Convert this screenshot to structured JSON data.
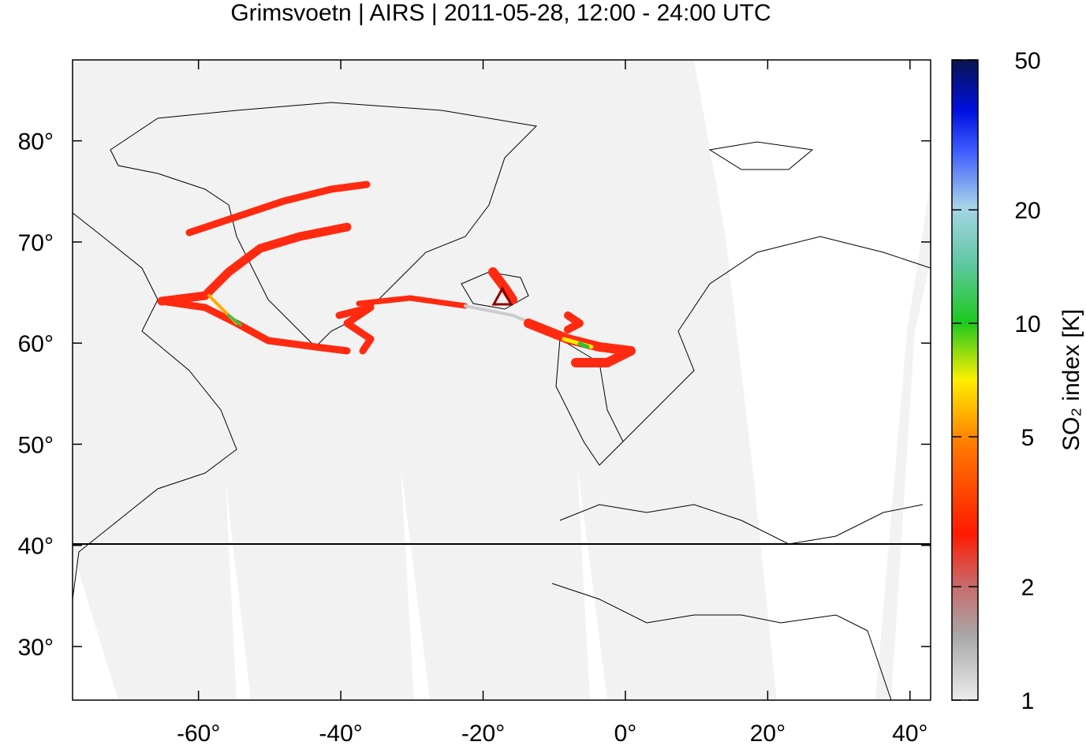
{
  "map": {
    "title": "Grimsvoetn | AIRS | 2011-05-28, 12:00 - 24:00 UTC",
    "xlim": [
      -77.7,
      42.9
    ],
    "ylim": [
      24.7,
      88
    ],
    "xticks": [
      {
        "value": -60,
        "label": "-60°"
      },
      {
        "value": -40,
        "label": "-40°"
      },
      {
        "value": -20,
        "label": "-20°"
      },
      {
        "value": 0,
        "label": "0°"
      },
      {
        "value": 20,
        "label": "20°"
      },
      {
        "value": 40,
        "label": "40°"
      }
    ],
    "yticks": [
      {
        "value": 30,
        "label": "30°"
      },
      {
        "value": 40,
        "label": "40°"
      },
      {
        "value": 50,
        "label": "50°"
      },
      {
        "value": 60,
        "label": "60°"
      },
      {
        "value": 70,
        "label": "70°"
      },
      {
        "value": 80,
        "label": "80°"
      }
    ],
    "colorbar": {
      "label": "SO₂ index [K]",
      "log": true,
      "lim": [
        1,
        50
      ],
      "ticks": [
        1,
        2,
        5,
        10,
        20,
        50
      ]
    }
  }
}
